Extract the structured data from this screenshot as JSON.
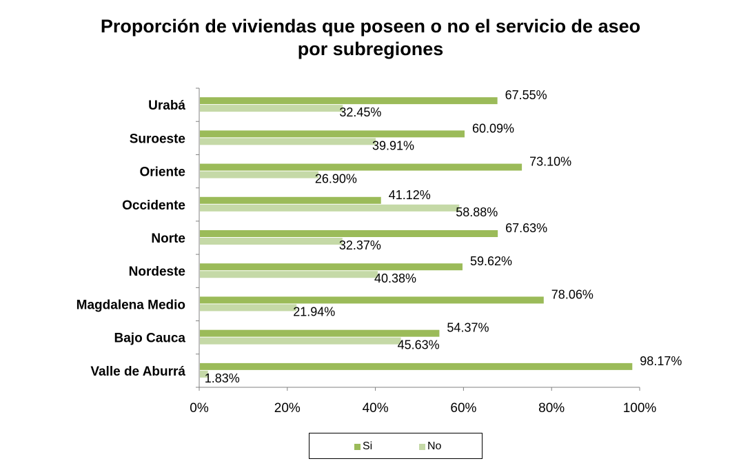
{
  "chart_data": {
    "type": "bar",
    "orientation": "horizontal",
    "title_lines": [
      "Proporción de viviendas que poseen o no el servicio de aseo",
      "por subregiones"
    ],
    "categories": [
      "Urabá",
      "Suroeste",
      "Oriente",
      "Occidente",
      "Norte",
      "Nordeste",
      "Magdalena Medio",
      "Bajo Cauca",
      "Valle de Aburrá"
    ],
    "series": [
      {
        "name": "Si",
        "color": "#9bbb59",
        "values": [
          67.55,
          60.09,
          73.1,
          41.12,
          67.63,
          59.62,
          78.06,
          54.37,
          98.17
        ],
        "labels": [
          "67.55%",
          "60.09%",
          "73.10%",
          "41.12%",
          "67.63%",
          "59.62%",
          "78.06%",
          "54.37%",
          "98.17%"
        ]
      },
      {
        "name": "No",
        "color": "#c5d9a7",
        "values": [
          32.45,
          39.91,
          26.9,
          58.88,
          32.37,
          40.38,
          21.94,
          45.63,
          1.83
        ],
        "labels": [
          "32.45%",
          "39.91%",
          "26.90%",
          "58.88%",
          "32.37%",
          "40.38%",
          "21.94%",
          "45.63%",
          "1.83%"
        ]
      }
    ],
    "xlim": [
      0,
      100
    ],
    "x_ticks": [
      "0%",
      "20%",
      "40%",
      "60%",
      "80%",
      "100%"
    ],
    "grid": false,
    "legend_position": "bottom"
  }
}
